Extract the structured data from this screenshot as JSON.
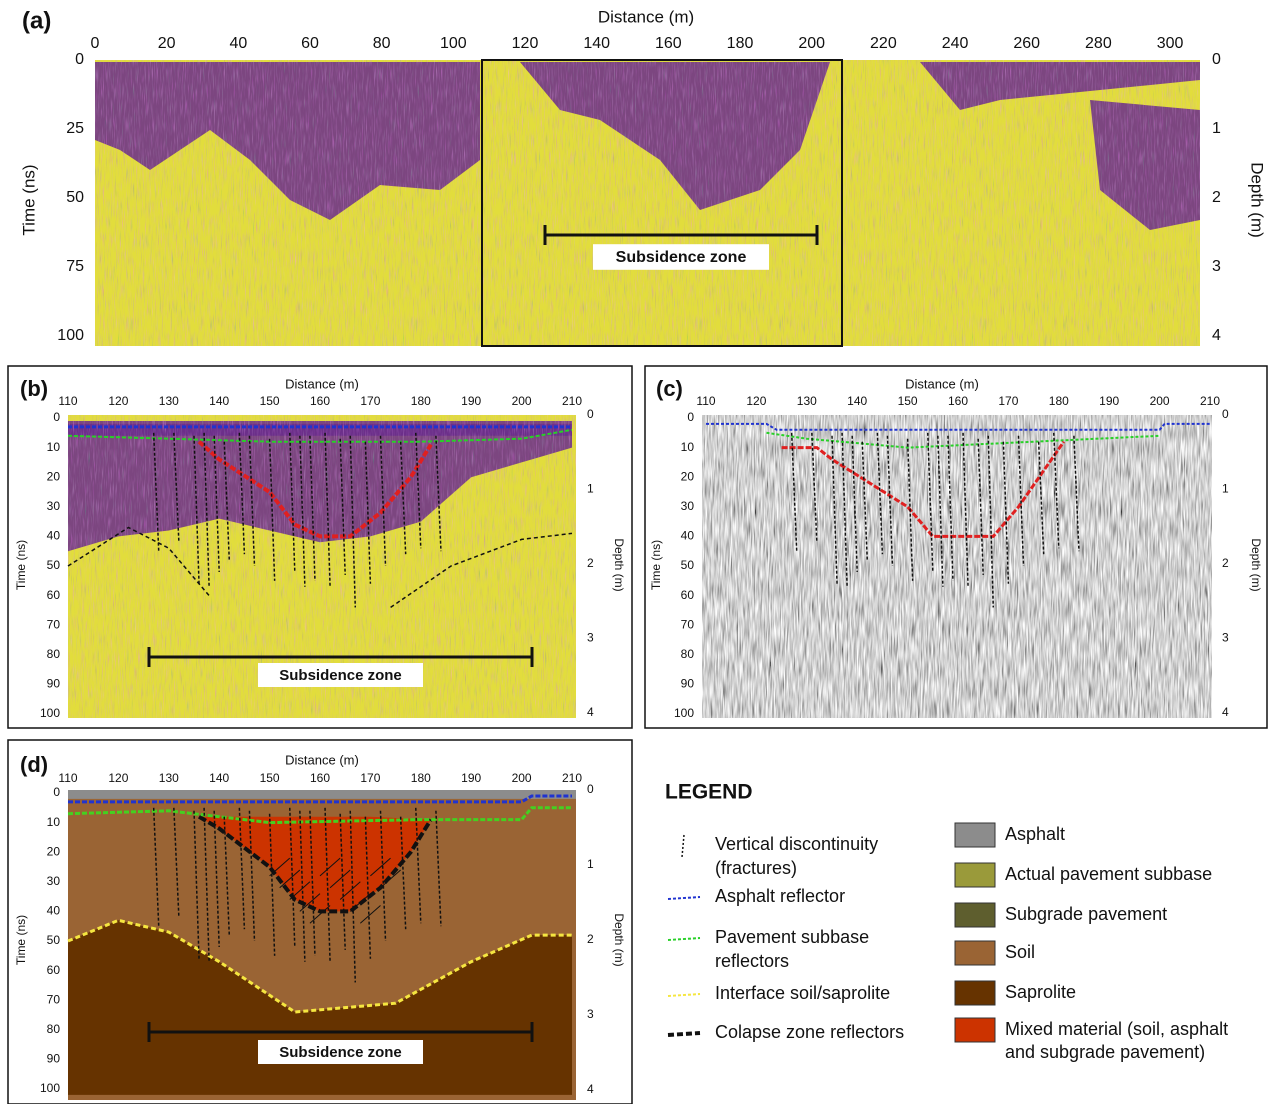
{
  "panels": [
    {
      "label": "(a)",
      "x_title": "Distance (m)",
      "xticks": [
        0,
        20,
        40,
        60,
        80,
        100,
        120,
        140,
        160,
        180,
        200,
        220,
        240,
        260,
        280,
        300
      ],
      "y_title": "Time (ns)",
      "yticks": [
        0,
        25,
        50,
        75,
        100
      ],
      "y2_title": "Depth (m)",
      "y2ticks": [
        0,
        1,
        2,
        3,
        4
      ],
      "annotation": "Subsidence zone"
    },
    {
      "label": "(b)",
      "x_title": "Distance (m)",
      "xticks": [
        110,
        120,
        130,
        140,
        150,
        160,
        170,
        180,
        190,
        200,
        210
      ],
      "y_title": "Time (ns)",
      "yticks": [
        0,
        10,
        20,
        30,
        40,
        50,
        60,
        70,
        80,
        90,
        100
      ],
      "y2_title": "Depth (m)",
      "y2ticks": [
        0,
        1,
        2,
        3,
        4
      ],
      "annotation": "Subsidence zone"
    },
    {
      "label": "(c)",
      "x_title": "Distance (m)",
      "xticks": [
        110,
        120,
        130,
        140,
        150,
        160,
        170,
        180,
        190,
        200,
        210
      ],
      "y_title": "Time (ns)",
      "yticks": [
        0,
        10,
        20,
        30,
        40,
        50,
        60,
        70,
        80,
        90,
        100
      ],
      "y2_title": "Depth (m)",
      "y2ticks": [
        0,
        1,
        2,
        3,
        4
      ]
    },
    {
      "label": "(d)",
      "x_title": "Distance (m)",
      "xticks": [
        110,
        120,
        130,
        140,
        150,
        160,
        170,
        180,
        190,
        200,
        210
      ],
      "y_title": "Time (ns)",
      "yticks": [
        0,
        10,
        20,
        30,
        40,
        50,
        60,
        70,
        80,
        90,
        100
      ],
      "y2_title": "Depth (m)",
      "y2ticks": [
        0,
        1,
        2,
        3,
        4
      ],
      "annotation": "Subsidence zone"
    }
  ],
  "legend": {
    "title": "LEGEND",
    "lines": [
      [
        "Vertical discontinuity",
        "(fractures)"
      ],
      [
        "Asphalt reflector"
      ],
      [
        "Pavement  subbase",
        "reflectors"
      ],
      [
        "Interface soil/saprolite"
      ],
      [
        "Colapse zone reflectors"
      ]
    ],
    "fills": [
      [
        "Asphalt"
      ],
      [
        "Actual pavement subbase"
      ],
      [
        "Subgrade pavement"
      ],
      [
        "Soil"
      ],
      [
        "Saprolite"
      ],
      [
        "Mixed material (soil, asphalt",
        "and subgrade pavement)"
      ]
    ]
  }
}
